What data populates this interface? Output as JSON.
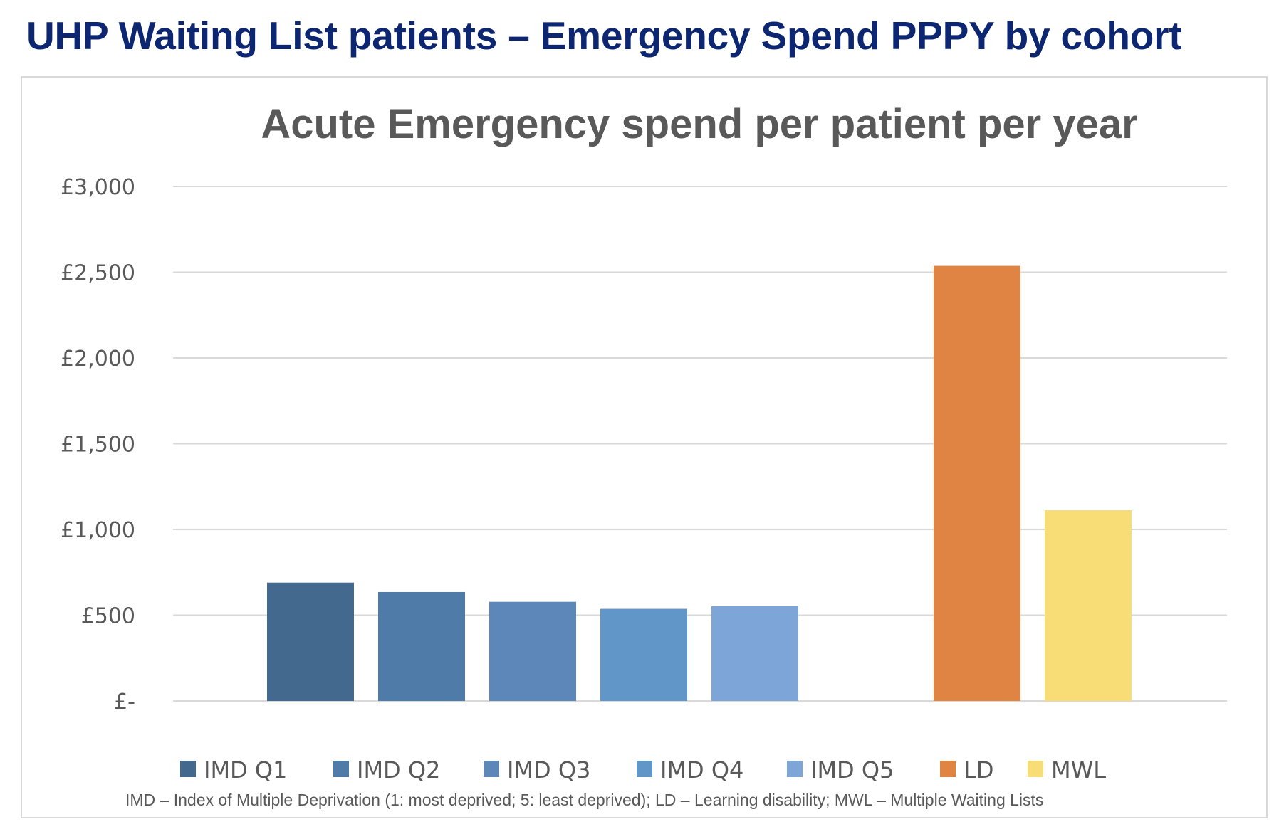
{
  "page": {
    "title": "UHP Waiting List patients – Emergency Spend PPPY by cohort",
    "footnote": "IMD – Index of Multiple Deprivation (1: most deprived; 5: least deprived); LD – Learning disability; MWL – Multiple Waiting Lists"
  },
  "chart_data": {
    "type": "bar",
    "title": "Acute Emergency spend per patient per year",
    "xlabel": "",
    "ylabel": "",
    "ylim": [
      0,
      3000
    ],
    "yticks": [
      0,
      500,
      1000,
      1500,
      2000,
      2500,
      3000
    ],
    "ytick_labels": [
      "£-",
      "£500",
      "£1,000",
      "£1,500",
      "£2,000",
      "£2,500",
      "£3,000"
    ],
    "grid": true,
    "legend_position": "bottom",
    "gap_after_index": 4,
    "series": [
      {
        "name": "IMD Q1",
        "value": 690,
        "color": "#43698f"
      },
      {
        "name": "IMD Q2",
        "value": 635,
        "color": "#4f7ba8"
      },
      {
        "name": "IMD Q3",
        "value": 578,
        "color": "#5d87b9"
      },
      {
        "name": "IMD Q4",
        "value": 537,
        "color": "#6096c8"
      },
      {
        "name": "IMD Q5",
        "value": 552,
        "color": "#7ea5d8"
      },
      {
        "name": "LD",
        "value": 2537,
        "color": "#e08444"
      },
      {
        "name": "MWL",
        "value": 1112,
        "color": "#f8dc76"
      }
    ]
  }
}
